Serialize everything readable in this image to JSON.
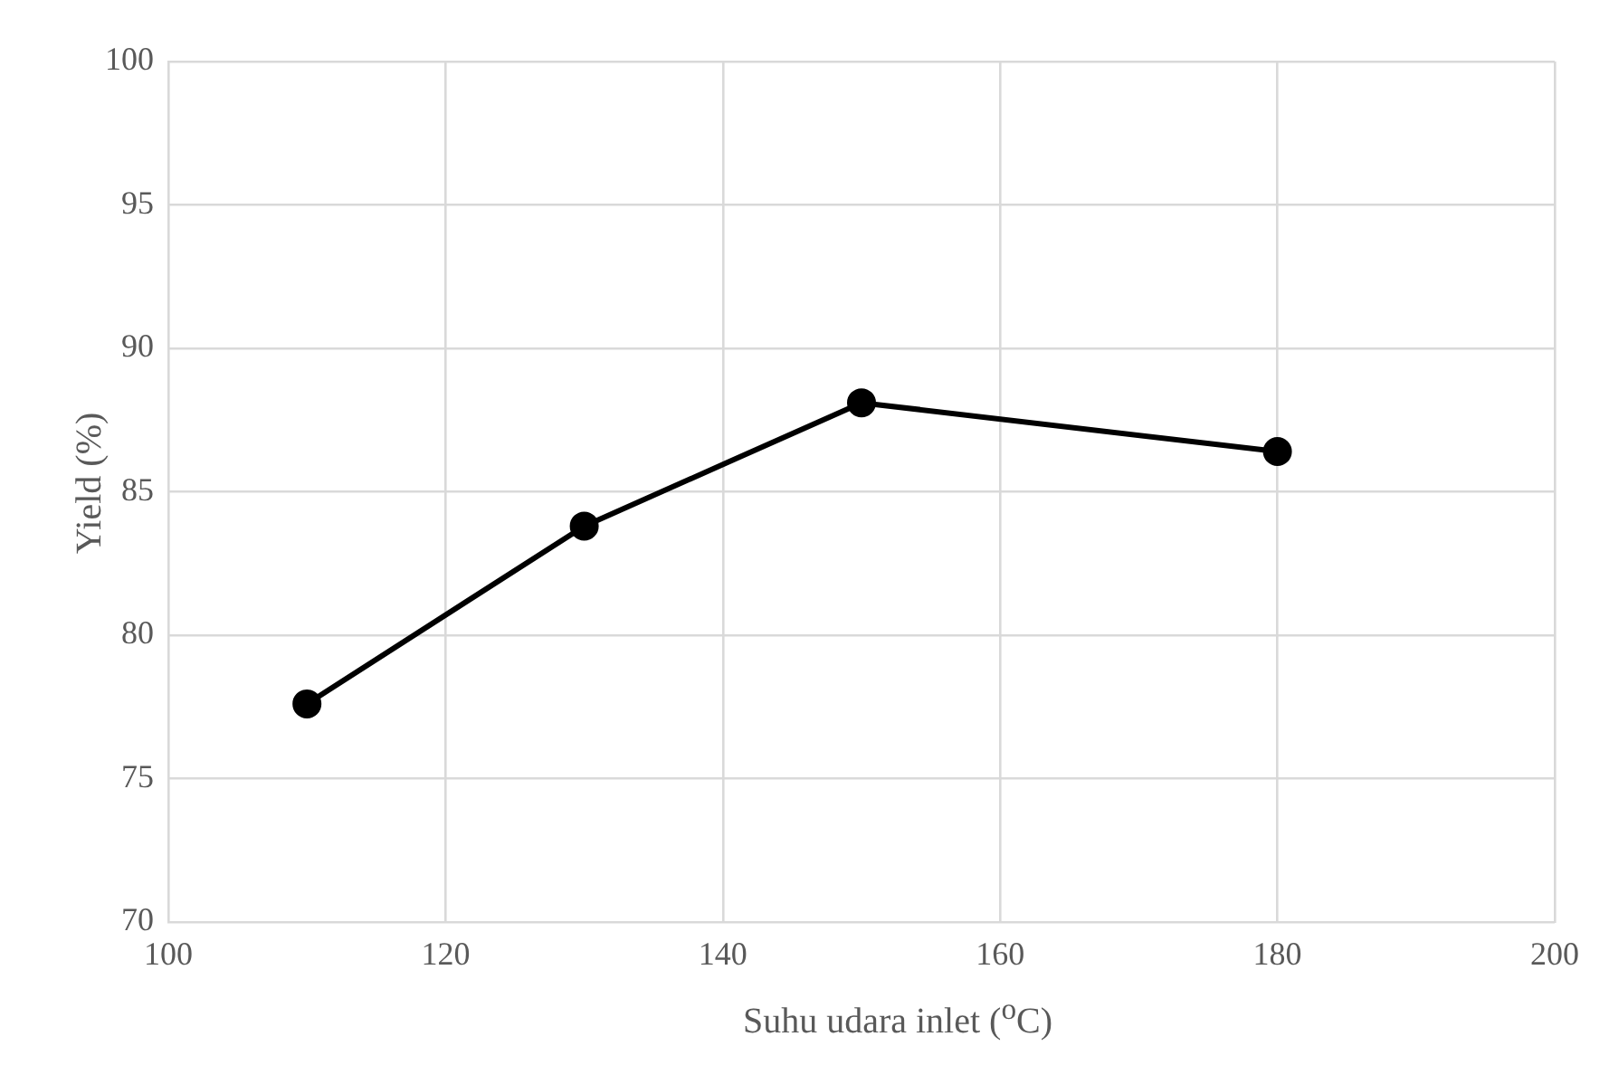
{
  "chart_data": {
    "type": "line",
    "xlabel": "Suhu udara inlet ($^{o}$C)",
    "ylabel": "Yield (%)",
    "x": [
      110,
      130,
      150,
      180
    ],
    "series": [
      {
        "color": "#000000",
        "values": [
          77.6,
          83.8,
          88.1,
          86.4
        ]
      }
    ],
    "xlim": [
      100,
      200
    ],
    "xticks": [
      100,
      120,
      140,
      160,
      180,
      200
    ],
    "ylim": [
      70,
      100
    ],
    "yticks": [
      70,
      75,
      80,
      85,
      90,
      95,
      100
    ],
    "grid": true,
    "legend": false,
    "marker": "circle",
    "line_style": "solid"
  }
}
